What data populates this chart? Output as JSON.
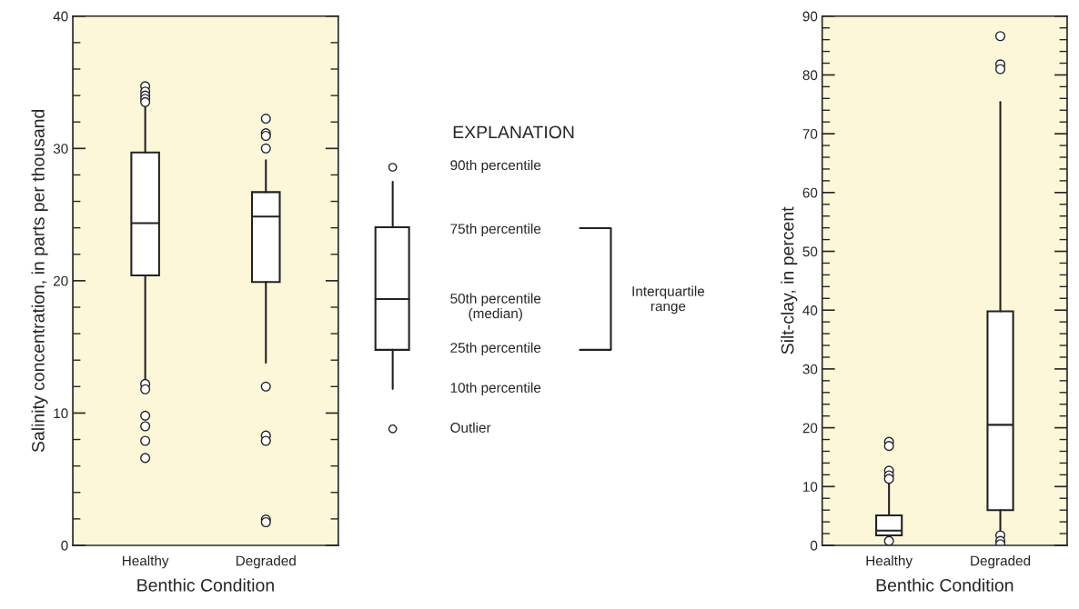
{
  "chart_data": [
    {
      "type": "box",
      "categories": [
        "Healthy",
        "Degraded"
      ],
      "xlabel": "Benthic Condition",
      "ylabel": "Salinity concentration, in parts per thousand",
      "ylim": [
        0,
        40
      ],
      "yticks": [
        0,
        10,
        20,
        30,
        40
      ],
      "grid": false,
      "legend": false,
      "boxes": [
        {
          "low": 12.4,
          "q1": 20.4,
          "median": 24.35,
          "q3": 29.7,
          "high": 33.1,
          "outliers": [
            34.7,
            34.3,
            34.0,
            33.75,
            33.5,
            12.2,
            11.8,
            9.8,
            9.0,
            7.9,
            6.6
          ]
        },
        {
          "low": 13.8,
          "q1": 19.9,
          "median": 24.85,
          "q3": 26.7,
          "high": 29.1,
          "outliers": [
            32.25,
            31.15,
            30.95,
            30.0,
            12.0,
            8.3,
            7.9,
            1.95,
            1.75
          ]
        }
      ]
    },
    {
      "type": "other",
      "title": "EXPLANATION",
      "annotations": [
        "90th percentile",
        "75th percentile",
        "50th percentile\n(median)",
        "25th percentile",
        "10th percentile",
        "Outlier",
        "Interquartile\nrange"
      ]
    },
    {
      "type": "box",
      "categories": [
        "Healthy",
        "Degraded"
      ],
      "xlabel": "Benthic Condition",
      "ylabel": "Silt-clay, in percent",
      "ylim": [
        0,
        90
      ],
      "yticks": [
        0,
        10,
        20,
        30,
        40,
        50,
        60,
        70,
        80,
        90
      ],
      "grid": false,
      "legend": false,
      "boxes": [
        {
          "low": 1.7,
          "q1": 1.7,
          "median": 2.5,
          "q3": 5.1,
          "high": 10.5,
          "outliers": [
            17.6,
            16.9,
            12.7,
            11.9,
            11.3,
            0.75
          ]
        },
        {
          "low": 2.35,
          "q1": 6.0,
          "median": 20.5,
          "q3": 39.8,
          "high": 75.4,
          "outliers": [
            86.6,
            81.8,
            81.0,
            1.7,
            0.75,
            0.2
          ]
        }
      ]
    }
  ]
}
